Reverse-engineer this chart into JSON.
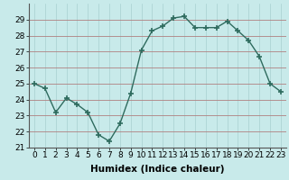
{
  "x": [
    0,
    1,
    2,
    3,
    4,
    5,
    6,
    7,
    8,
    9,
    10,
    11,
    12,
    13,
    14,
    15,
    16,
    17,
    18,
    19,
    20,
    21,
    22,
    23
  ],
  "y": [
    25.0,
    24.7,
    23.2,
    24.1,
    23.7,
    23.2,
    21.8,
    21.4,
    22.5,
    24.4,
    27.1,
    28.3,
    28.6,
    29.1,
    29.2,
    28.5,
    28.5,
    28.5,
    28.9,
    28.3,
    27.7,
    26.7,
    25.0,
    24.5
  ],
  "line_color": "#2e6b5e",
  "marker": "+",
  "marker_size": 4,
  "marker_lw": 1.2,
  "bg_color": "#c8eaea",
  "grid_color_major": "#b08080",
  "grid_color_minor": "#a0c8c8",
  "xlabel": "Humidex (Indice chaleur)",
  "ylim": [
    21,
    30
  ],
  "xlim": [
    -0.5,
    23.5
  ],
  "yticks": [
    21,
    22,
    23,
    24,
    25,
    26,
    27,
    28,
    29
  ],
  "xtick_labels": [
    "0",
    "1",
    "2",
    "3",
    "4",
    "5",
    "6",
    "7",
    "8",
    "9",
    "10",
    "11",
    "12",
    "13",
    "14",
    "15",
    "16",
    "17",
    "18",
    "19",
    "20",
    "21",
    "22",
    "23"
  ],
  "font_size": 6.5,
  "xlabel_fontsize": 7.5,
  "line_width": 1.0
}
